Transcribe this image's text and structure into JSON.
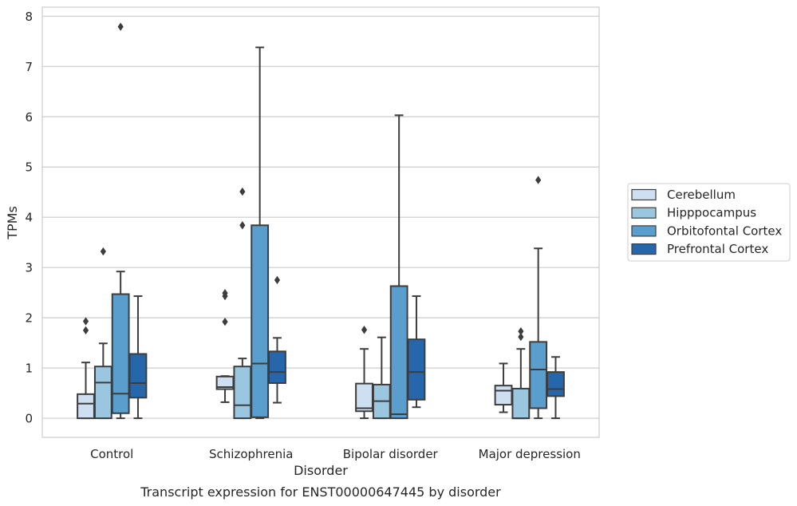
{
  "chart_data": {
    "type": "box",
    "title": "Transcript expression for ENST00000647445 by disorder",
    "xlabel": "Disorder",
    "ylabel": "TPMs",
    "ylim": [
      -0.38,
      8.18
    ],
    "yticks": [
      0,
      1,
      2,
      3,
      4,
      5,
      6,
      7,
      8
    ],
    "grid": "horizontal",
    "legend_position": "right",
    "categories": [
      "Control",
      "Schizophrenia",
      "Bipolar disorder",
      "Major depression"
    ],
    "series": [
      {
        "name": "Cerebellum",
        "color": "#cddff0",
        "boxes": [
          {
            "whislo": 0.0,
            "q1": 0.0,
            "med": 0.29,
            "q3": 0.48,
            "whishi": 1.11,
            "fliers": [
              1.75,
              1.93
            ]
          },
          {
            "whislo": 0.32,
            "q1": 0.58,
            "med": 0.62,
            "q3": 0.83,
            "whishi": 0.84,
            "fliers": [
              1.92,
              2.43,
              2.49
            ]
          },
          {
            "whislo": 0.0,
            "q1": 0.14,
            "med": 0.2,
            "q3": 0.69,
            "whishi": 1.38,
            "fliers": [
              1.76
            ]
          },
          {
            "whislo": 0.12,
            "q1": 0.27,
            "med": 0.55,
            "q3": 0.65,
            "whishi": 1.09,
            "fliers": []
          }
        ]
      },
      {
        "name": "Hipppocampus",
        "color": "#9ac6df",
        "boxes": [
          {
            "whislo": 0.0,
            "q1": 0.0,
            "med": 0.71,
            "q3": 1.03,
            "whishi": 1.49,
            "fliers": [
              3.32
            ]
          },
          {
            "whislo": 0.0,
            "q1": 0.0,
            "med": 0.26,
            "q3": 1.03,
            "whishi": 1.19,
            "fliers": [
              3.84,
              4.51
            ]
          },
          {
            "whislo": 0.0,
            "q1": 0.0,
            "med": 0.34,
            "q3": 0.67,
            "whishi": 1.61,
            "fliers": []
          },
          {
            "whislo": 0.0,
            "q1": 0.0,
            "med": 0.0,
            "q3": 0.59,
            "whishi": 1.38,
            "fliers": [
              1.62,
              1.73
            ]
          }
        ]
      },
      {
        "name": "Orbitofontal Cortex",
        "color": "#5a9ecd",
        "boxes": [
          {
            "whislo": 0.0,
            "q1": 0.1,
            "med": 0.49,
            "q3": 2.47,
            "whishi": 2.92,
            "fliers": [
              7.79
            ]
          },
          {
            "whislo": 0.0,
            "q1": 0.02,
            "med": 1.09,
            "q3": 3.84,
            "whishi": 7.38,
            "fliers": []
          },
          {
            "whislo": 0.0,
            "q1": 0.0,
            "med": 0.08,
            "q3": 2.63,
            "whishi": 6.03,
            "fliers": []
          },
          {
            "whislo": 0.0,
            "q1": 0.2,
            "med": 0.97,
            "q3": 1.52,
            "whishi": 3.38,
            "fliers": [
              4.74
            ]
          }
        ]
      },
      {
        "name": "Prefrontal Cortex",
        "color": "#2667ac",
        "boxes": [
          {
            "whislo": 0.0,
            "q1": 0.41,
            "med": 0.7,
            "q3": 1.28,
            "whishi": 2.43,
            "fliers": []
          },
          {
            "whislo": 0.31,
            "q1": 0.7,
            "med": 0.92,
            "q3": 1.33,
            "whishi": 1.6,
            "fliers": [
              2.75
            ]
          },
          {
            "whislo": 0.22,
            "q1": 0.37,
            "med": 0.92,
            "q3": 1.57,
            "whishi": 2.43,
            "fliers": []
          },
          {
            "whislo": 0.0,
            "q1": 0.44,
            "med": 0.58,
            "q3": 0.92,
            "whishi": 1.22,
            "fliers": []
          }
        ]
      }
    ]
  }
}
